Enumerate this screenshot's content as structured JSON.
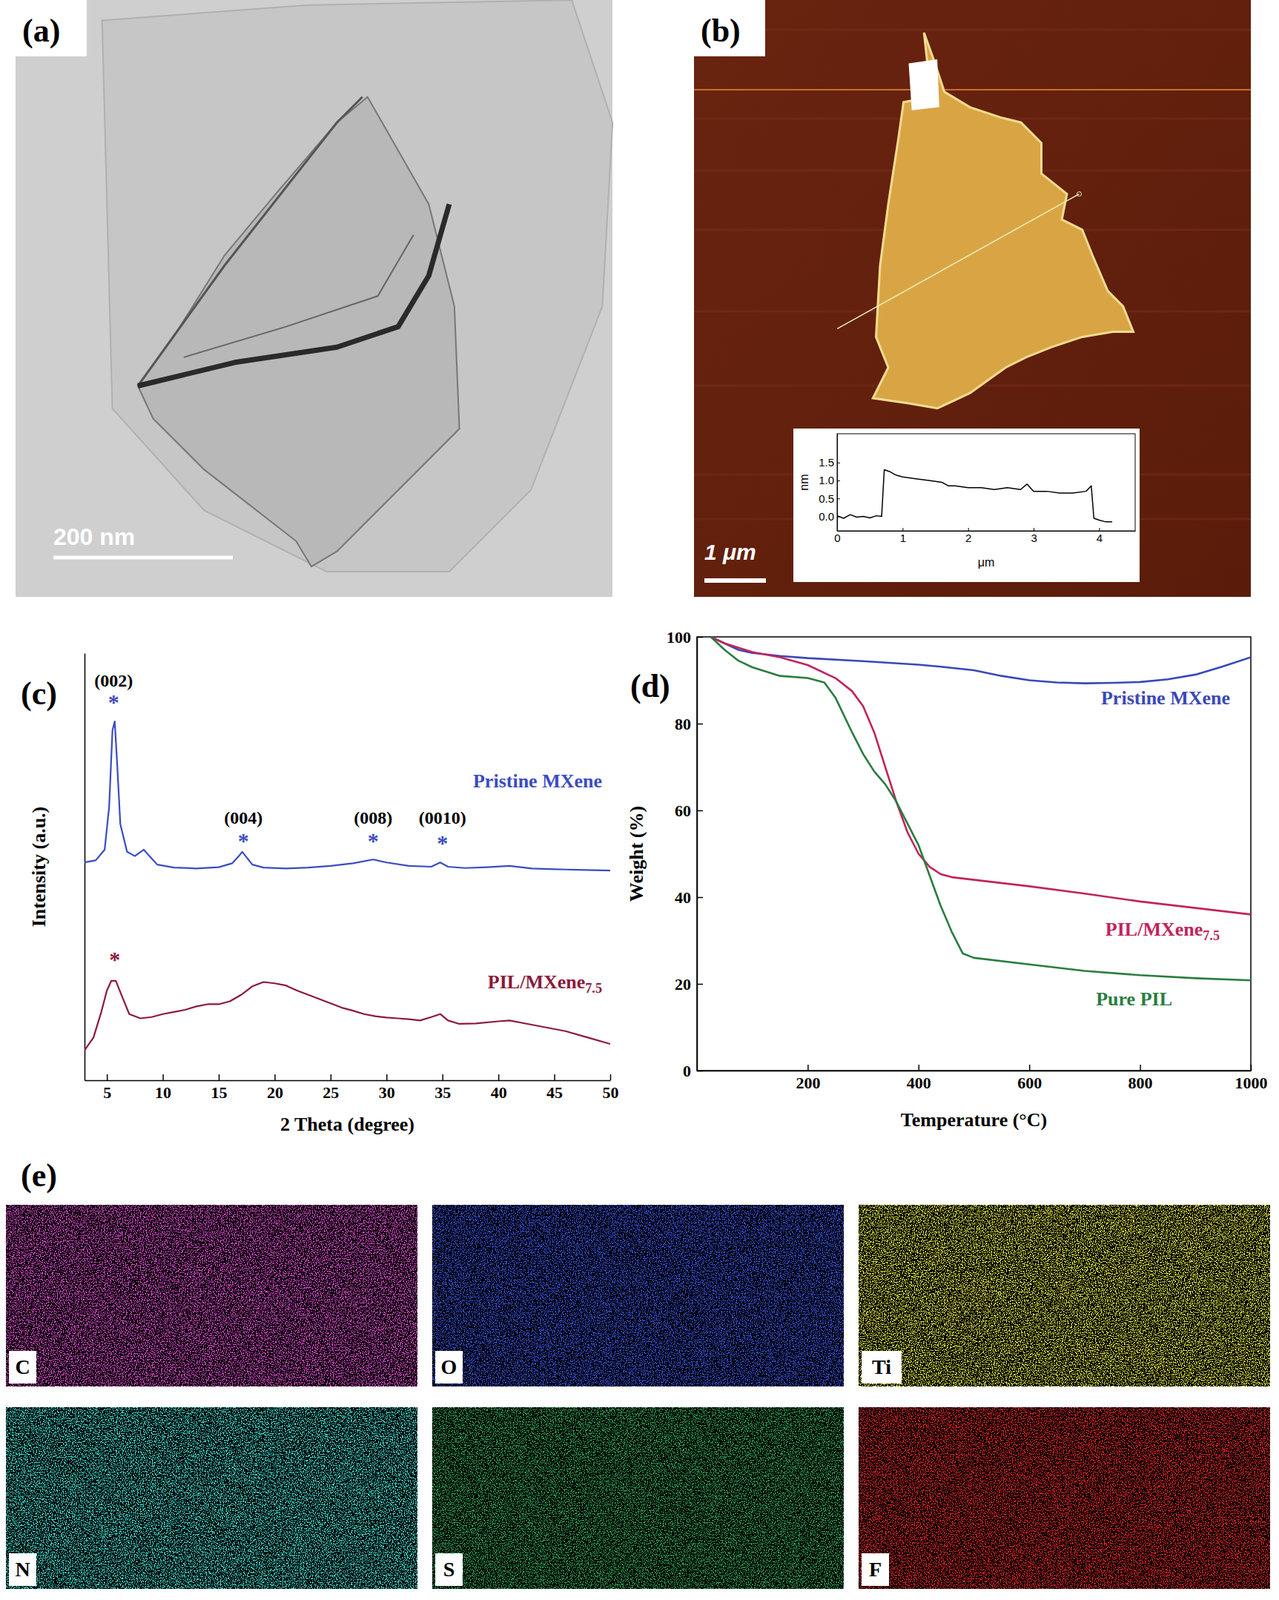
{
  "images": [
    {
      "panel": "(a)",
      "scale_bar": "200 nm"
    },
    {
      "panel": "(b)",
      "scale_bar": "1 μm"
    },
    {
      "panel": "(e)",
      "maps": [
        "C",
        "O",
        "Ti",
        "N",
        "S",
        "F"
      ],
      "colors": [
        "#d44ac8",
        "#3550d8",
        "#dde040",
        "#3fd6cc",
        "#2fa052",
        "#e02424"
      ]
    }
  ],
  "chart_data": [
    {
      "type": "line",
      "xlabel": "μm",
      "ylabel": "nm",
      "xlim": [
        0,
        4.55
      ],
      "ylim": [
        -0.4,
        2.3
      ],
      "xticks": [
        0,
        1,
        2,
        3,
        4
      ],
      "yticks": [
        {
          "value": 0,
          "label": "0.0"
        },
        0.5,
        {
          "value": 1,
          "label": "1.0"
        },
        1.5
      ],
      "x": [
        0,
        0.1,
        0.2,
        0.3,
        0.4,
        0.5,
        0.6,
        0.68,
        0.72,
        0.8,
        0.9,
        1.0,
        1.2,
        1.4,
        1.6,
        1.7,
        1.8,
        2.0,
        2.2,
        2.4,
        2.6,
        2.8,
        2.9,
        3.0,
        3.2,
        3.4,
        3.6,
        3.8,
        3.88,
        3.92,
        4.0,
        4.1,
        4.2
      ],
      "series": [
        {
          "color": "#000000",
          "values": [
            0.02,
            -0.05,
            0.05,
            -0.02,
            0.0,
            -0.04,
            0.02,
            0.0,
            1.3,
            1.25,
            1.15,
            1.1,
            1.05,
            1.0,
            0.95,
            0.85,
            0.85,
            0.8,
            0.8,
            0.75,
            0.8,
            0.75,
            0.9,
            0.7,
            0.7,
            0.65,
            0.65,
            0.7,
            0.85,
            -0.05,
            -0.1,
            -0.15,
            -0.15
          ]
        }
      ]
    },
    {
      "type": "line",
      "panel": "(c)",
      "xlabel": "2 Theta (degree)",
      "ylabel": "Intensity (a.u.)",
      "xlim": [
        3,
        50
      ],
      "ylim": [
        0,
        100
      ],
      "xticks": [
        5,
        10,
        15,
        20,
        25,
        30,
        35,
        40,
        45,
        50
      ],
      "yticks": [],
      "tick_labels": "x",
      "series": [
        {
          "name": "Pristine MXene",
          "color": "#3b4cc0",
          "x": [
            3,
            4,
            4.8,
            5.2,
            5.5,
            5.7,
            5.9,
            6.2,
            6.8,
            7.5,
            8.3,
            8.8,
            9.5,
            11,
            13,
            15,
            16.2,
            16.8,
            17.1,
            17.4,
            18,
            19,
            21,
            23,
            25,
            27,
            28.8,
            30,
            32,
            34,
            34.8,
            35.5,
            37,
            39,
            41,
            43,
            45,
            47,
            50
          ],
          "values": [
            51,
            51.5,
            54,
            64,
            82,
            84,
            75,
            60,
            53.5,
            52.5,
            54,
            52.5,
            50.5,
            49.8,
            49.6,
            49.9,
            50.8,
            52.5,
            53.5,
            52.5,
            50.5,
            49.8,
            49.6,
            49.8,
            50.2,
            50.8,
            51.7,
            51.0,
            50.2,
            50.0,
            51.0,
            50.0,
            49.7,
            49.9,
            50.2,
            49.6,
            49.4,
            49.3,
            49.1
          ]
        },
        {
          "name": "PIL/MXene7.5",
          "color": "#8b1a3a",
          "x": [
            3,
            3.8,
            4.5,
            5,
            5.4,
            5.8,
            6.3,
            7,
            8,
            9,
            10,
            11,
            12,
            13,
            14,
            15,
            16,
            17,
            18,
            19,
            20,
            21,
            22,
            23,
            24,
            25,
            26,
            27,
            28,
            29,
            30,
            31,
            32,
            33,
            34,
            34.8,
            35.5,
            36.5,
            38,
            40,
            41,
            42,
            44,
            46,
            48,
            50
          ],
          "values": [
            7,
            10,
            16,
            21,
            23.3,
            23.3,
            20,
            15.5,
            14.5,
            14.8,
            15.5,
            16,
            16.5,
            17.3,
            17.8,
            17.8,
            18.5,
            20,
            22,
            23,
            22.7,
            22.2,
            21,
            20,
            19,
            18,
            17,
            16.3,
            15.5,
            15,
            14.7,
            14.5,
            14.3,
            14,
            14.8,
            15.5,
            14,
            13.2,
            13.3,
            13.8,
            14,
            13.5,
            12.5,
            11.5,
            10,
            8.5
          ]
        }
      ],
      "annotations": [
        {
          "text": "(002)",
          "x": 5.6,
          "y": 93.2
        },
        {
          "text": "*",
          "x": 5.6,
          "y": 88,
          "color": "#3b4cc0"
        },
        {
          "text": "(004)",
          "x": 17.2,
          "y": 61
        },
        {
          "text": "*",
          "x": 17.2,
          "y": 55.5,
          "color": "#3b4cc0"
        },
        {
          "text": "(008)",
          "x": 28.8,
          "y": 61
        },
        {
          "text": "*",
          "x": 28.8,
          "y": 55.5,
          "color": "#3b4cc0"
        },
        {
          "text": "(0010)",
          "x": 35,
          "y": 61
        },
        {
          "text": "*",
          "x": 35,
          "y": 55,
          "color": "#3b4cc0"
        },
        {
          "text": "*",
          "x": 5.7,
          "y": 27.8,
          "color": "#8b1a3a"
        }
      ]
    },
    {
      "type": "line",
      "panel": "(d)",
      "xlabel": "Temperature (°C)",
      "ylabel": "Weight (%)",
      "xlim": [
        0,
        1000
      ],
      "ylim": [
        0,
        100
      ],
      "xticks": [
        200,
        400,
        600,
        800,
        1000
      ],
      "yticks": [
        0,
        20,
        40,
        60,
        80,
        100
      ],
      "series": [
        {
          "name": "Pristine MXene",
          "color": "#3a48b8",
          "x": [
            25,
            50,
            75,
            100,
            150,
            200,
            300,
            400,
            450,
            500,
            550,
            600,
            650,
            700,
            750,
            800,
            850,
            900,
            950,
            1000
          ],
          "values": [
            100,
            98.5,
            97,
            96.3,
            95.6,
            95.1,
            94.4,
            93.6,
            93,
            92.3,
            91,
            90,
            89.5,
            89.3,
            89.4,
            89.6,
            90.2,
            91.3,
            93.2,
            95.3
          ]
        },
        {
          "name": "PIL/MXene7.5",
          "color": "#c0245c",
          "x": [
            25,
            50,
            100,
            150,
            200,
            250,
            280,
            300,
            320,
            340,
            360,
            380,
            400,
            420,
            440,
            460,
            500,
            600,
            700,
            800,
            900,
            1000
          ],
          "values": [
            100,
            98.5,
            96.5,
            95.3,
            93.5,
            90.5,
            87.5,
            84,
            78,
            70,
            62,
            55,
            50,
            47,
            45.3,
            44.6,
            44,
            42.5,
            40.8,
            39,
            37.5,
            36
          ]
        },
        {
          "name": "Pure PIL",
          "color": "#2a7d3f",
          "x": [
            25,
            50,
            75,
            100,
            150,
            200,
            230,
            250,
            280,
            300,
            320,
            340,
            360,
            380,
            400,
            420,
            440,
            460,
            480,
            500,
            600,
            700,
            800,
            900,
            1000
          ],
          "values": [
            100,
            97,
            94.5,
            93,
            91,
            90.5,
            89.5,
            86,
            78,
            73,
            69,
            66,
            62,
            57,
            52,
            45,
            38,
            32,
            27,
            26,
            24.5,
            23,
            22,
            21.3,
            20.8
          ]
        }
      ]
    }
  ]
}
